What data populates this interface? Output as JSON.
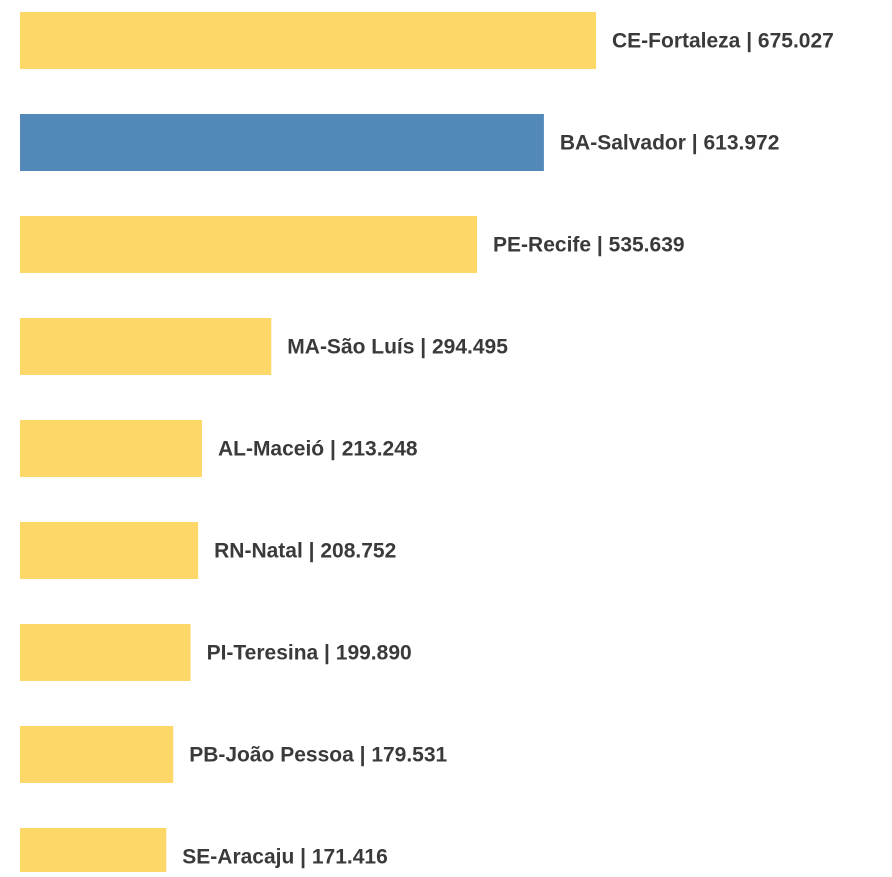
{
  "chart_data": {
    "type": "bar",
    "orientation": "horizontal",
    "categories": [
      "CE-Fortaleza",
      "BA-Salvador",
      "PE-Recife",
      "MA-São Luís",
      "AL-Maceió",
      "RN-Natal",
      "PI-Teresina",
      "PB-João Pessoa",
      "SE-Aracaju"
    ],
    "values": [
      675027,
      613972,
      535639,
      294495,
      213248,
      208752,
      199890,
      179531,
      171416
    ],
    "value_labels": [
      "675.027",
      "613.972",
      "535.639",
      "294.495",
      "213.248",
      "208.752",
      "199.890",
      "179.531",
      "171.416"
    ],
    "separator": " | ",
    "colors": [
      "#fdd868",
      "#5289b9",
      "#fdd868",
      "#fdd868",
      "#fdd868",
      "#fdd868",
      "#fdd868",
      "#fdd868",
      "#fdd868"
    ]
  }
}
